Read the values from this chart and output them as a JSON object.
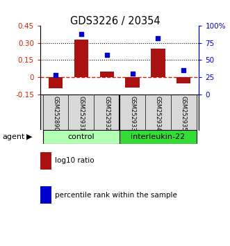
{
  "title": "GDS3226 / 20354",
  "samples": [
    "GSM252890",
    "GSM252931",
    "GSM252932",
    "GSM252933",
    "GSM252934",
    "GSM252935"
  ],
  "log10_ratio": [
    -0.1,
    0.33,
    0.05,
    -0.09,
    0.25,
    -0.055
  ],
  "percentile_rank": [
    28,
    88,
    57,
    30,
    82,
    35
  ],
  "groups": [
    {
      "label": "control",
      "indices": [
        0,
        1,
        2
      ],
      "color": "#b3ffb3"
    },
    {
      "label": "interleukin-22",
      "indices": [
        3,
        4,
        5
      ],
      "color": "#33dd33"
    }
  ],
  "bar_color": "#aa1111",
  "dot_color": "#0000cc",
  "ylim_left": [
    -0.15,
    0.45
  ],
  "ylim_right": [
    0,
    100
  ],
  "yticks_left": [
    -0.15,
    0.0,
    0.15,
    0.3,
    0.45
  ],
  "yticks_right": [
    0,
    25,
    50,
    75,
    100
  ],
  "yticklabels_left": [
    "-0.15",
    "0",
    "0.15",
    "0.30",
    "0.45"
  ],
  "yticklabels_right": [
    "0",
    "25",
    "50",
    "75",
    "100%"
  ],
  "hlines": [
    0.15,
    0.3
  ],
  "left_axis_color": "#cc2200",
  "right_axis_color": "#0000cc",
  "zero_line_color": "#cc2200",
  "agent_label": "agent",
  "legend_bar_label": "log10 ratio",
  "legend_dot_label": "percentile rank within the sample"
}
